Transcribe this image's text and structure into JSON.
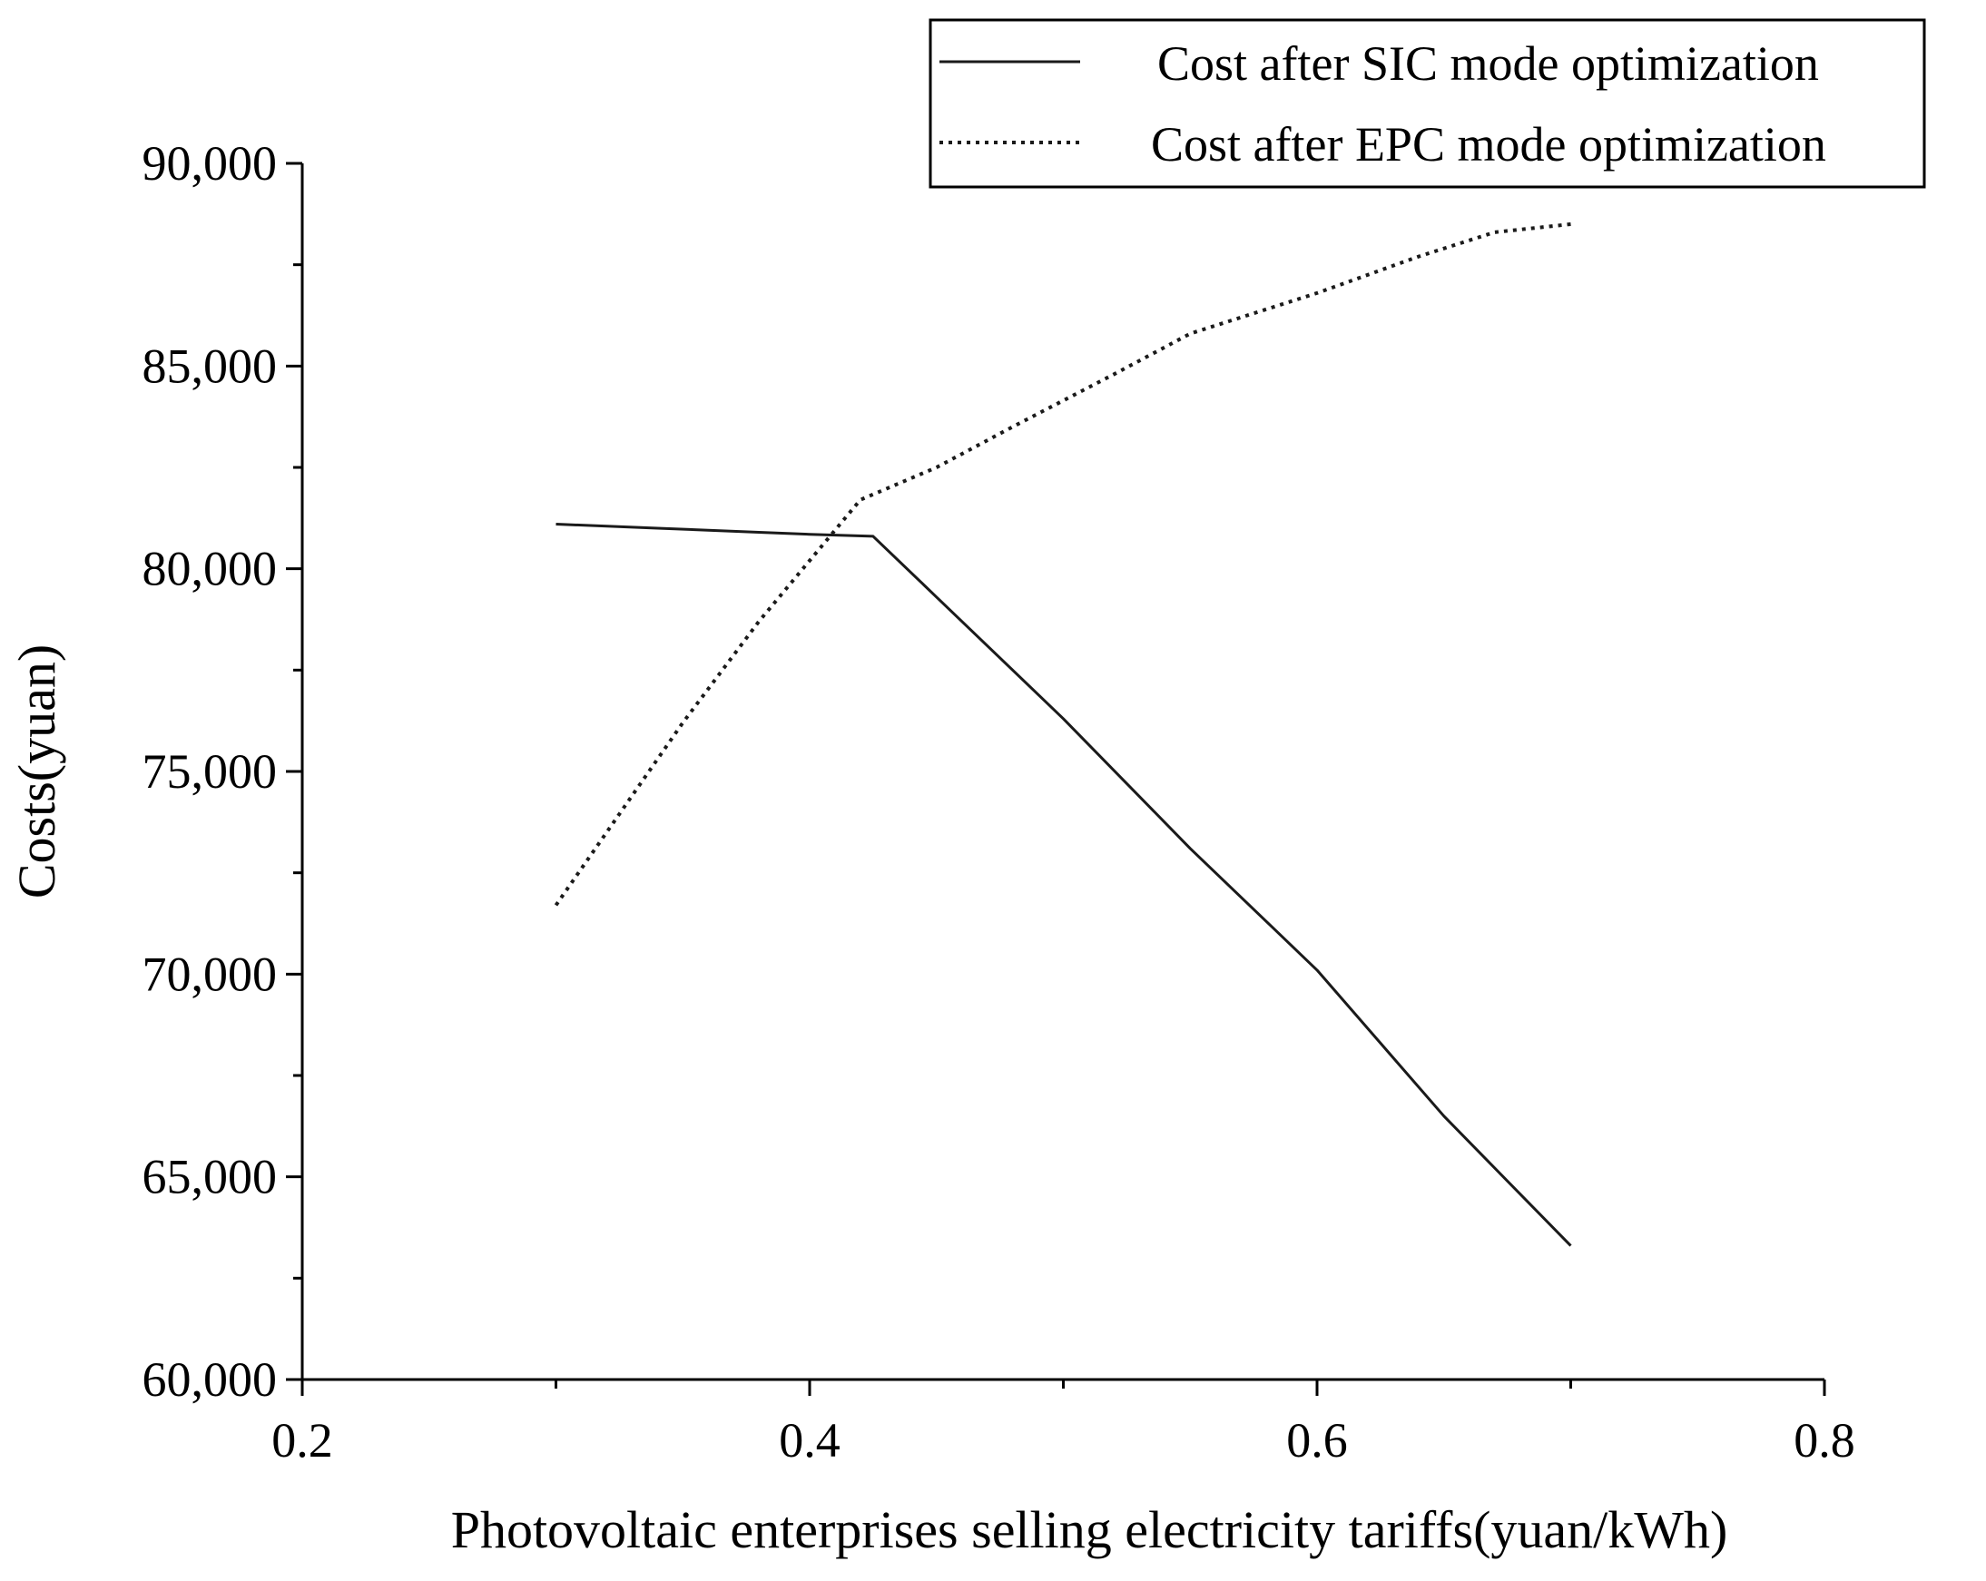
{
  "chart_data": {
    "type": "line",
    "title": "",
    "xlabel": "Photovoltaic enterprises selling electricity tariffs(yuan/kWh)",
    "ylabel": "Costs(yuan)",
    "xlim": [
      0.2,
      0.8
    ],
    "ylim": [
      60000,
      90000
    ],
    "x_ticks": [
      0.2,
      0.4,
      0.6,
      0.8
    ],
    "x_tick_labels": [
      "0.2",
      "0.4",
      "0.6",
      "0.8"
    ],
    "y_ticks": [
      60000,
      65000,
      70000,
      75000,
      80000,
      85000,
      90000
    ],
    "y_tick_labels": [
      "60,000",
      "65,000",
      "70,000",
      "75,000",
      "80,000",
      "85,000",
      "90,000"
    ],
    "grid": false,
    "legend_position": "top-right",
    "series": [
      {
        "name": "Cost after SIC mode optimization",
        "style": "solid",
        "color": "#1a1a1a",
        "x": [
          0.3,
          0.34,
          0.38,
          0.4,
          0.425,
          0.45,
          0.5,
          0.55,
          0.6,
          0.65,
          0.7
        ],
        "y": [
          81100,
          81000,
          80900,
          80850,
          80800,
          79300,
          76300,
          73100,
          70100,
          66500,
          63300
        ]
      },
      {
        "name": "Cost after EPC mode optimization",
        "style": "dotted",
        "color": "#1a1a1a",
        "x": [
          0.3,
          0.32,
          0.35,
          0.38,
          0.4,
          0.42,
          0.45,
          0.48,
          0.52,
          0.55,
          0.6,
          0.64,
          0.67,
          0.7
        ],
        "y": [
          71700,
          73500,
          76200,
          78700,
          80200,
          81700,
          82500,
          83500,
          84800,
          85800,
          86800,
          87700,
          88300,
          88500
        ]
      }
    ]
  }
}
